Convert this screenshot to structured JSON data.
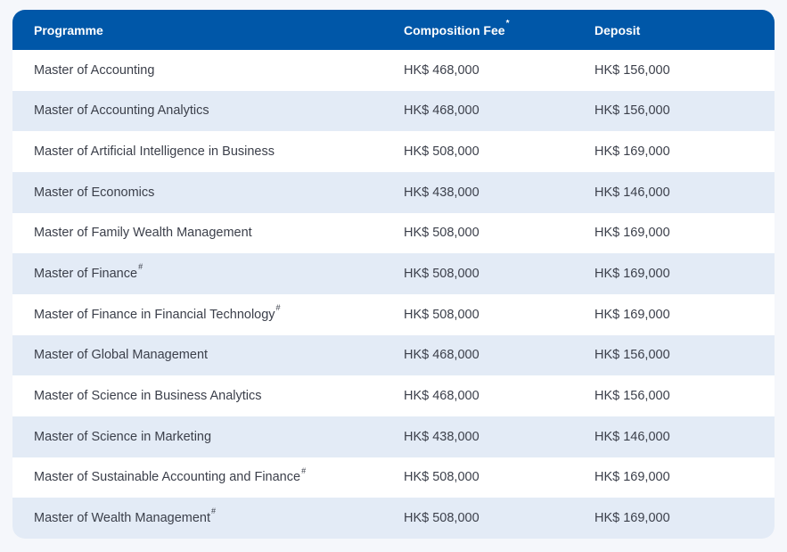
{
  "header": {
    "programme": "Programme",
    "fee": "Composition Fee",
    "fee_mark": "*",
    "deposit": "Deposit"
  },
  "rows": [
    {
      "programme": "Master of Accounting",
      "mark": "",
      "fee": "HK$ 468,000",
      "deposit": "HK$ 156,000"
    },
    {
      "programme": "Master of Accounting Analytics",
      "mark": "",
      "fee": "HK$ 468,000",
      "deposit": "HK$ 156,000"
    },
    {
      "programme": "Master of Artificial Intelligence in Business",
      "mark": "",
      "fee": "HK$ 508,000",
      "deposit": "HK$ 169,000"
    },
    {
      "programme": "Master of Economics",
      "mark": "",
      "fee": "HK$ 438,000",
      "deposit": "HK$ 146,000"
    },
    {
      "programme": "Master of Family Wealth Management",
      "mark": "",
      "fee": "HK$ 508,000",
      "deposit": "HK$ 169,000"
    },
    {
      "programme": "Master of Finance",
      "mark": "#",
      "fee": "HK$ 508,000",
      "deposit": "HK$ 169,000"
    },
    {
      "programme": "Master of Finance in Financial Technology",
      "mark": "#",
      "fee": "HK$ 508,000",
      "deposit": "HK$ 169,000"
    },
    {
      "programme": "Master of Global Management",
      "mark": "",
      "fee": "HK$ 468,000",
      "deposit": "HK$ 156,000"
    },
    {
      "programme": "Master of Science in Business Analytics",
      "mark": "",
      "fee": "HK$ 468,000",
      "deposit": "HK$ 156,000"
    },
    {
      "programme": "Master of Science in Marketing",
      "mark": "",
      "fee": "HK$ 438,000",
      "deposit": "HK$ 146,000"
    },
    {
      "programme": "Master of Sustainable Accounting and Finance",
      "mark": "#",
      "fee": "HK$ 508,000",
      "deposit": "HK$ 169,000"
    },
    {
      "programme": "Master of Wealth Management",
      "mark": "#",
      "fee": "HK$ 508,000",
      "deposit": "HK$ 169,000"
    }
  ],
  "colors": {
    "header_bg": "#0057a8",
    "alt_row_bg": "#e3ebf6"
  }
}
